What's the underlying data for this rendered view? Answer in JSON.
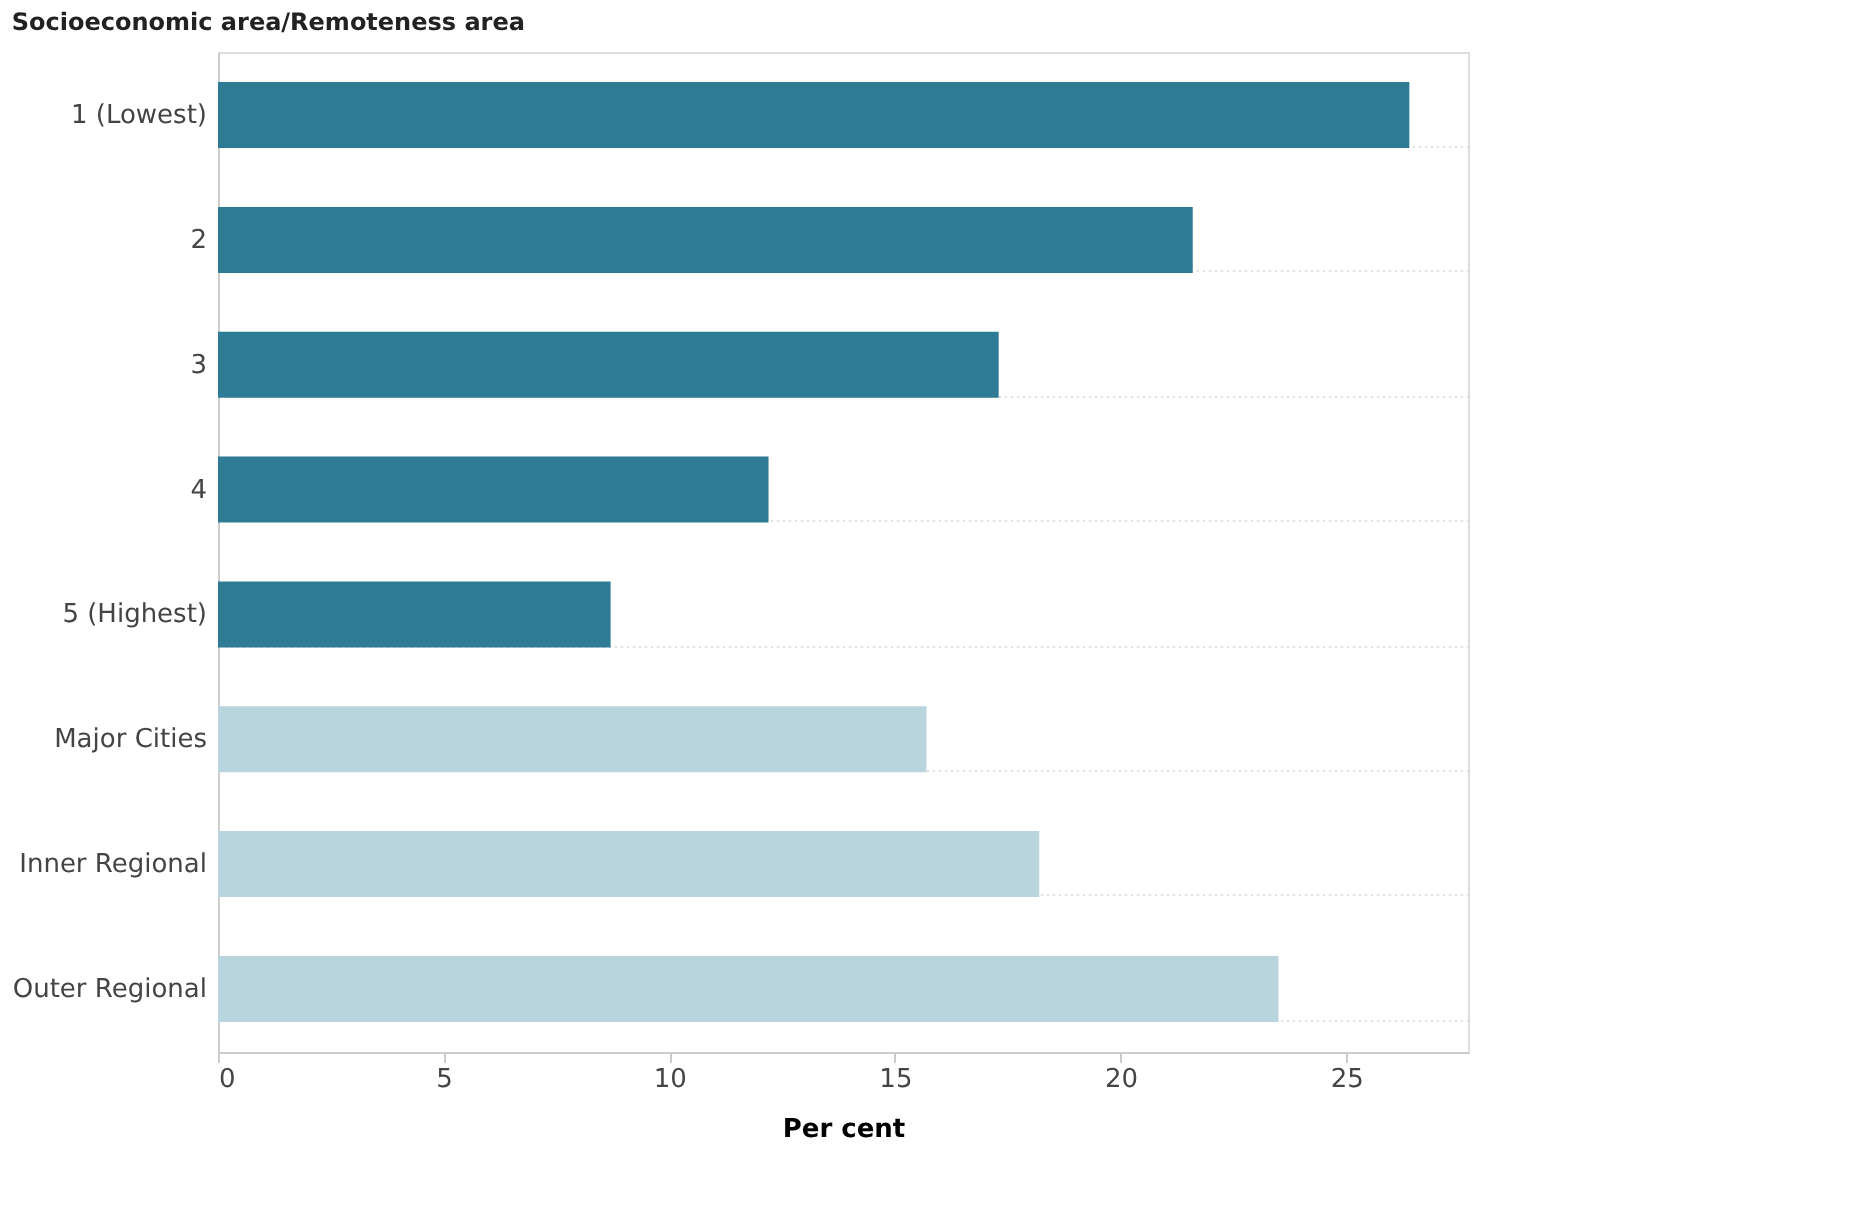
{
  "chart_data": {
    "type": "bar",
    "orientation": "horizontal",
    "ylabel": "Socioeconomic area/Remoteness area",
    "xlabel": "Per cent",
    "categories": [
      "1 (Lowest)",
      "2",
      "3",
      "4",
      "5 (Highest)",
      "Major Cities",
      "Inner Regional",
      "Outer Regional"
    ],
    "values": [
      26.4,
      21.6,
      17.3,
      12.2,
      8.7,
      15.7,
      18.2,
      23.5
    ],
    "colors": [
      "#2e7b96",
      "#2e7b96",
      "#2e7b96",
      "#2e7b96",
      "#2e7b96",
      "#b8d5de",
      "#b8d5de",
      "#b8d5de"
    ],
    "xlim": [
      0,
      27.7
    ],
    "xticks": [
      0,
      5,
      10,
      15,
      20,
      25
    ],
    "grid": "y"
  }
}
